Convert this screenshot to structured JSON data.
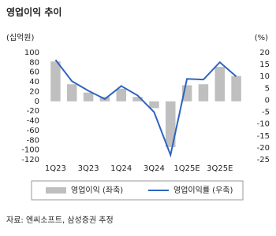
{
  "chart_data": {
    "type": "bar",
    "title": "영업이익 추이",
    "y_label": "(십억원)",
    "y2_label": "(%)",
    "source": "자료: 엔씨소프트, 삼성증권 추정",
    "categories": [
      "1Q23",
      null,
      "3Q23",
      null,
      "1Q24",
      null,
      "3Q24",
      null,
      "1Q25E",
      null,
      "3Q25E",
      null
    ],
    "series": [
      {
        "name": "영업이익 (좌축)",
        "type": "bar",
        "color": "#bfbfbf",
        "values": [
          82,
          35,
          18,
          9,
          26,
          9,
          -14,
          -94,
          33,
          35,
          71,
          52
        ]
      },
      {
        "name": "영업이익률 (우축)",
        "type": "line",
        "axis": "y2",
        "color": "#2e63c2",
        "values": [
          17,
          8,
          4,
          0.5,
          6,
          2,
          -5,
          -23,
          9,
          8.7,
          16,
          10
        ]
      }
    ],
    "ylim": [
      -120,
      100
    ],
    "yticks": [
      -120,
      -100,
      -80,
      -60,
      -40,
      -20,
      0,
      20,
      40,
      60,
      80,
      100
    ],
    "y2lim": [
      -25,
      20
    ],
    "y2ticks": [
      -25,
      -20,
      -15,
      -10,
      -5,
      0,
      5,
      10,
      15,
      20
    ]
  }
}
